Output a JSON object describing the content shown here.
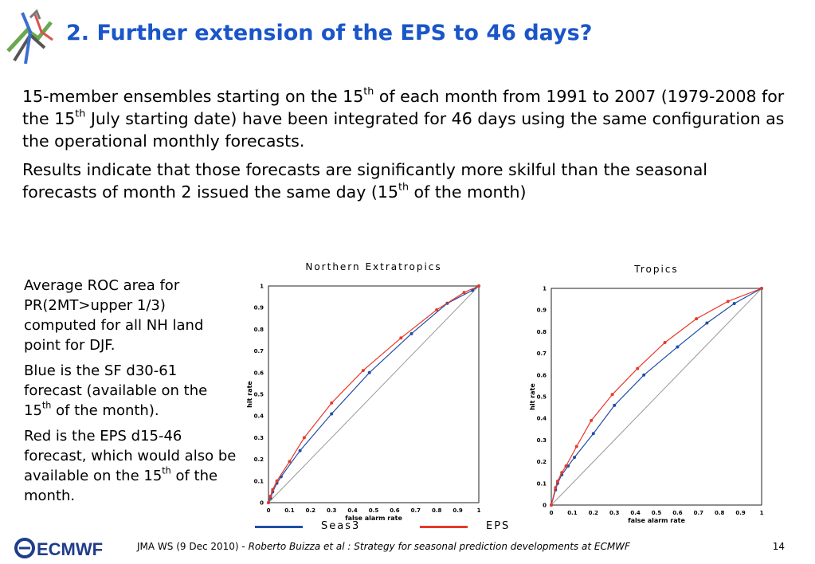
{
  "slide": {
    "title": "2. Further extension of the EPS to 46 days?",
    "para1": {
      "a": "15-member ensembles starting on the 15",
      "sup1": "th",
      "b": " of each month from 1991 to 2007 (1979-2008 for the 15",
      "sup2": "th",
      "c": " July starting date) have been integrated for 46 days using the same configuration as the operational monthly forecasts."
    },
    "para2": {
      "a": "Results indicate that those forecasts are significantly more skilful than the seasonal forecasts of month 2 issued the same day (15",
      "sup": "th",
      "b": " of the month)"
    },
    "side": {
      "p1": "Average ROC area for PR(2MT>upper 1/3) computed for all NH land point for DJF.",
      "p2a": "Blue is the SF d30-61 forecast (available on the 15",
      "p2sup": "th",
      "p2b": " of the month).",
      "p3a": "Red is the EPS d15-46 forecast, which would also be available on the 15",
      "p3sup": "th",
      "p3b": " of the month."
    }
  },
  "legend": {
    "series": [
      {
        "name": "Seas3",
        "color": "#1f4fa8"
      },
      {
        "name": "EPS",
        "color": "#e8392a"
      }
    ]
  },
  "footer": {
    "left": "JMA WS (9 Dec 2010) -",
    "author": "Roberto Buizza et al : Strategy for seasonal prediction developments at ECMWF",
    "page": "14",
    "logo_text": "ECMWF"
  },
  "chart_data": [
    {
      "type": "line",
      "title": "Northern Extratropics",
      "xlabel": "false alarm rate",
      "ylabel": "hit rate",
      "xlim": [
        0,
        1
      ],
      "ylim": [
        0,
        1
      ],
      "ticks": [
        "0",
        "0.1",
        "0.2",
        "0.3",
        "0.4",
        "0.5",
        "0.6",
        "0.7",
        "0.8",
        "0.9",
        "1"
      ],
      "tick_values": [
        0,
        0.1,
        0.2,
        0.3,
        0.4,
        0.5,
        0.6,
        0.7,
        0.8,
        0.9,
        1
      ],
      "diagonal": true,
      "series": [
        {
          "color": "#1f4fa8",
          "x": [
            0,
            0.01,
            0.02,
            0.04,
            0.06,
            0.15,
            0.3,
            0.48,
            0.68,
            0.85,
            0.97,
            1
          ],
          "y": [
            0,
            0.02,
            0.05,
            0.09,
            0.12,
            0.24,
            0.41,
            0.6,
            0.78,
            0.92,
            0.98,
            1
          ]
        },
        {
          "color": "#e8392a",
          "x": [
            0,
            0.01,
            0.02,
            0.04,
            0.1,
            0.17,
            0.3,
            0.45,
            0.63,
            0.8,
            0.93,
            1
          ],
          "y": [
            0,
            0.03,
            0.06,
            0.1,
            0.19,
            0.3,
            0.46,
            0.61,
            0.76,
            0.89,
            0.97,
            1
          ]
        }
      ]
    },
    {
      "type": "line",
      "title": "Tropics",
      "xlabel": "false alarm rate",
      "ylabel": "hit rate",
      "xlim": [
        0,
        1
      ],
      "ylim": [
        0,
        1
      ],
      "ticks": [
        "0",
        "0.1",
        "0.2",
        "0.3",
        "0.4",
        "0.5",
        "0.6",
        "0.7",
        "0.8",
        "0.9",
        "1"
      ],
      "tick_values": [
        0,
        0.1,
        0.2,
        0.3,
        0.4,
        0.5,
        0.6,
        0.7,
        0.8,
        0.9,
        1
      ],
      "diagonal": true,
      "series": [
        {
          "color": "#1f4fa8",
          "x": [
            0,
            0.02,
            0.03,
            0.05,
            0.08,
            0.11,
            0.2,
            0.3,
            0.44,
            0.6,
            0.74,
            0.87,
            1
          ],
          "y": [
            0,
            0.07,
            0.1,
            0.14,
            0.18,
            0.22,
            0.33,
            0.46,
            0.6,
            0.73,
            0.84,
            0.93,
            1
          ]
        },
        {
          "color": "#e8392a",
          "x": [
            0,
            0.02,
            0.03,
            0.05,
            0.07,
            0.12,
            0.19,
            0.29,
            0.41,
            0.54,
            0.69,
            0.84,
            1
          ],
          "y": [
            0,
            0.08,
            0.11,
            0.15,
            0.18,
            0.27,
            0.39,
            0.51,
            0.63,
            0.75,
            0.86,
            0.94,
            1
          ]
        }
      ]
    }
  ]
}
